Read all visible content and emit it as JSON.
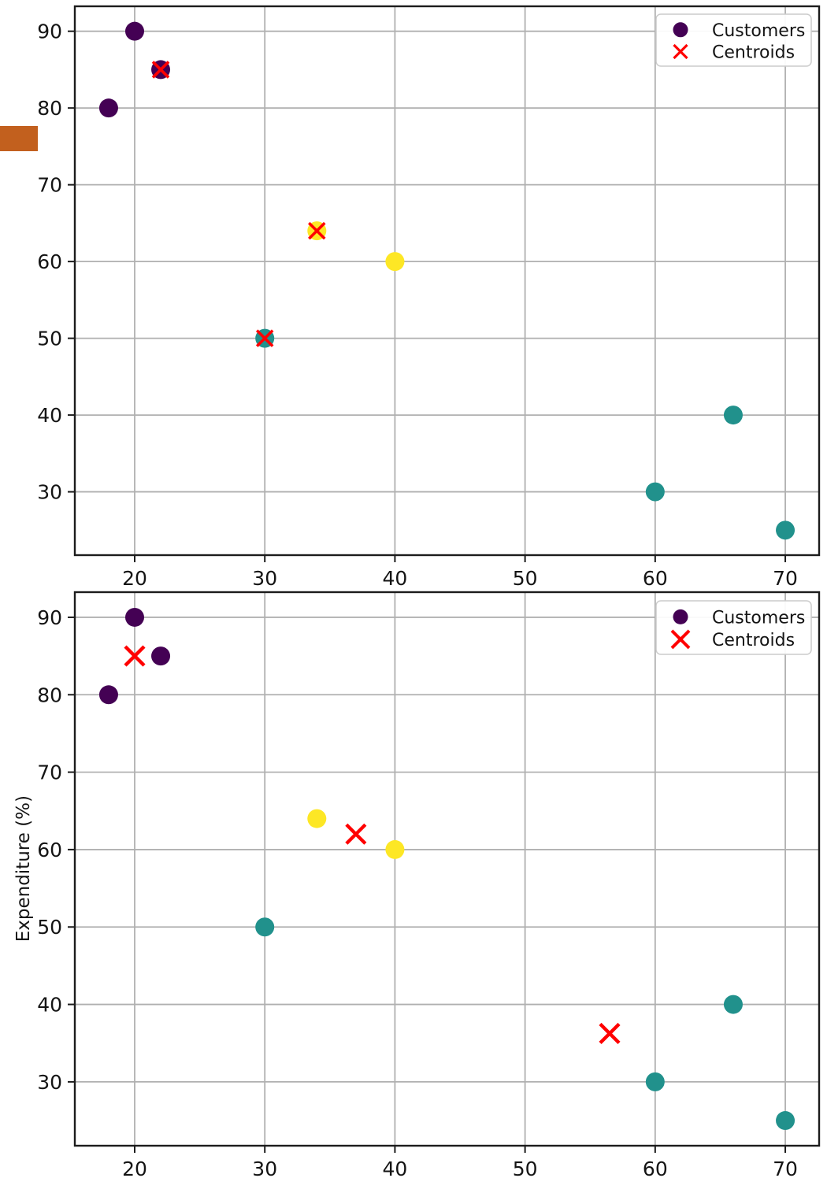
{
  "page": {
    "background": "#ffffff",
    "artifact_color": "#c2601e"
  },
  "colors": {
    "cluster_purple": "#440154",
    "cluster_yellow": "#fde725",
    "cluster_teal": "#21918c",
    "centroid_red": "#ff0000",
    "grid": "#b0b0b0",
    "spine": "#1c1c1c"
  },
  "chart_data": [
    {
      "type": "scatter",
      "title": "",
      "xlabel": "",
      "ylabel": "",
      "xlim": [
        15.4,
        72.6
      ],
      "ylim": [
        21.75,
        93.25
      ],
      "xticks": [
        20,
        30,
        40,
        50,
        60,
        70
      ],
      "yticks": [
        30,
        40,
        50,
        60,
        70,
        80,
        90
      ],
      "grid": true,
      "legend": {
        "position": "upper right",
        "entries": [
          {
            "label": "Customers",
            "marker": "circle",
            "color": "#440154"
          },
          {
            "label": "Centroids",
            "marker": "x",
            "color": "#ff0000"
          }
        ]
      },
      "series": [
        {
          "name": "customers-cluster-purple",
          "marker": "circle",
          "color": "#440154",
          "points": [
            [
              18,
              80
            ],
            [
              20,
              90
            ],
            [
              22,
              85
            ]
          ]
        },
        {
          "name": "customers-cluster-yellow",
          "marker": "circle",
          "color": "#fde725",
          "points": [
            [
              34,
              64
            ],
            [
              40,
              60
            ]
          ]
        },
        {
          "name": "customers-cluster-teal",
          "marker": "circle",
          "color": "#21918c",
          "points": [
            [
              30,
              50
            ],
            [
              60,
              30
            ],
            [
              66,
              40
            ],
            [
              70,
              25
            ]
          ]
        },
        {
          "name": "centroids-initial",
          "marker": "x",
          "color": "#ff0000",
          "points": [
            [
              22,
              85
            ],
            [
              34,
              64
            ],
            [
              30,
              50
            ]
          ]
        }
      ]
    },
    {
      "type": "scatter",
      "title": "",
      "xlabel": "",
      "ylabel": "Expenditure (%)",
      "xlim": [
        15.4,
        72.6
      ],
      "ylim": [
        21.75,
        93.25
      ],
      "xticks": [
        20,
        30,
        40,
        50,
        60,
        70
      ],
      "yticks": [
        30,
        40,
        50,
        60,
        70,
        80,
        90
      ],
      "grid": true,
      "legend": {
        "position": "upper right",
        "entries": [
          {
            "label": "Customers",
            "marker": "circle",
            "color": "#440154"
          },
          {
            "label": "Centroids",
            "marker": "x",
            "color": "#ff0000"
          }
        ]
      },
      "series": [
        {
          "name": "customers-cluster-purple",
          "marker": "circle",
          "color": "#440154",
          "points": [
            [
              18,
              80
            ],
            [
              20,
              90
            ],
            [
              22,
              85
            ]
          ]
        },
        {
          "name": "customers-cluster-yellow",
          "marker": "circle",
          "color": "#fde725",
          "points": [
            [
              34,
              64
            ],
            [
              40,
              60
            ]
          ]
        },
        {
          "name": "customers-cluster-teal",
          "marker": "circle",
          "color": "#21918c",
          "points": [
            [
              30,
              50
            ],
            [
              60,
              30
            ],
            [
              66,
              40
            ],
            [
              70,
              25
            ]
          ]
        },
        {
          "name": "centroids-updated",
          "marker": "x",
          "color": "#ff0000",
          "points": [
            [
              20,
              85
            ],
            [
              37,
              62
            ],
            [
              56.5,
              36.25
            ]
          ]
        }
      ]
    }
  ]
}
